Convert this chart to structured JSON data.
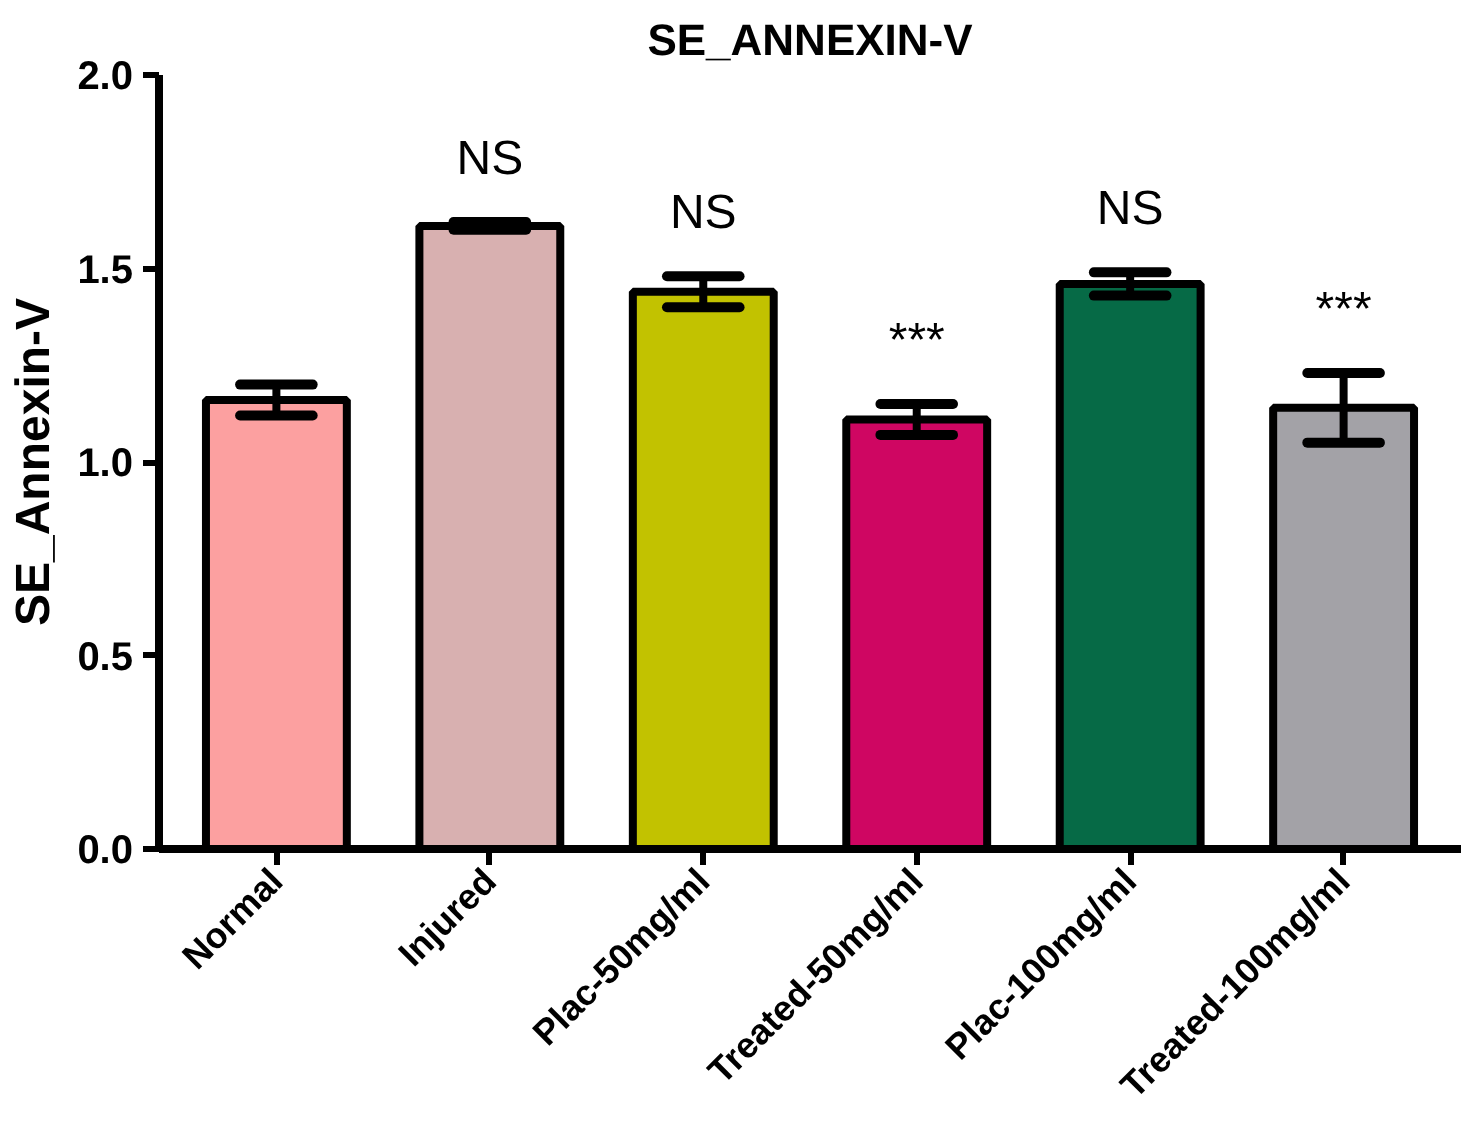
{
  "chart_data": {
    "type": "bar",
    "title": "SE_ANNEXIN-V",
    "ylabel": "SE_Annexin-V",
    "categories": [
      "Normal",
      "Injured",
      "Plac-50mg/ml",
      "Treated-50mg/ml",
      "Plac-100mg/ml",
      "Treated-100mg/ml"
    ],
    "values": [
      1.16,
      1.61,
      1.44,
      1.11,
      1.46,
      1.14
    ],
    "errors": [
      0.04,
      0.01,
      0.04,
      0.04,
      0.03,
      0.09
    ],
    "colors": [
      "#fca0a0",
      "#d8b0b0",
      "#c2c200",
      "#cf0662",
      "#066a46",
      "#a3a2a7"
    ],
    "ylim": [
      0,
      2
    ],
    "yticks": [
      {
        "value": 0,
        "label": "0.0"
      },
      {
        "value": 0.5,
        "label": "0.5"
      },
      {
        "value": 1,
        "label": "1.0"
      },
      {
        "value": 1.5,
        "label": "1.5"
      },
      {
        "value": 2,
        "label": "2.0"
      }
    ],
    "annotations": [
      {
        "text": "NS",
        "x": "Injured",
        "y": 1.61
      },
      {
        "text": "NS",
        "x": "Plac-50mg/ml",
        "y": 1.44
      },
      {
        "text": "***",
        "x": "Treated-50mg/ml",
        "y": 1.11
      },
      {
        "text": "NS",
        "x": "Plac-100mg/ml",
        "y": 1.46
      },
      {
        "text": "***",
        "x": "Treated-100mg/ml",
        "y": 1.14
      }
    ]
  }
}
